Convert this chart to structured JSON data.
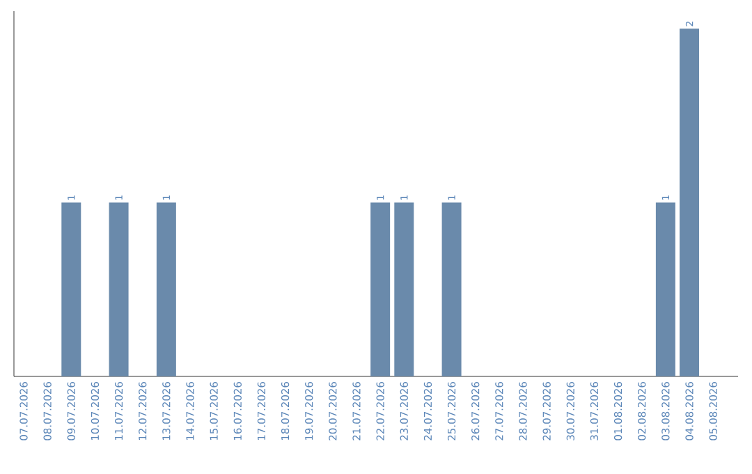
{
  "chart_data": {
    "type": "bar",
    "categories": [
      "07.07.2026",
      "08.07.2026",
      "09.07.2026",
      "10.07.2026",
      "11.07.2026",
      "12.07.2026",
      "13.07.2026",
      "14.07.2026",
      "15.07.2026",
      "16.07.2026",
      "17.07.2026",
      "18.07.2026",
      "19.07.2026",
      "20.07.2026",
      "21.07.2026",
      "22.07.2026",
      "23.07.2026",
      "24.07.2026",
      "25.07.2026",
      "26.07.2026",
      "27.07.2026",
      "28.07.2026",
      "29.07.2026",
      "30.07.2026",
      "31.07.2026",
      "01.08.2026",
      "02.08.2026",
      "03.08.2026",
      "04.08.2026",
      "05.08.2026"
    ],
    "values": [
      0,
      0,
      1,
      0,
      1,
      0,
      1,
      0,
      0,
      0,
      0,
      0,
      0,
      0,
      0,
      1,
      1,
      0,
      1,
      0,
      0,
      0,
      0,
      0,
      0,
      0,
      0,
      1,
      2,
      0
    ],
    "value_labels": [
      null,
      null,
      "1",
      null,
      "1",
      null,
      "1",
      null,
      null,
      null,
      null,
      null,
      null,
      null,
      null,
      "1",
      "1",
      null,
      "1",
      null,
      null,
      null,
      null,
      null,
      null,
      null,
      null,
      "1",
      "2",
      null
    ],
    "color": "#6a8aab"
  }
}
